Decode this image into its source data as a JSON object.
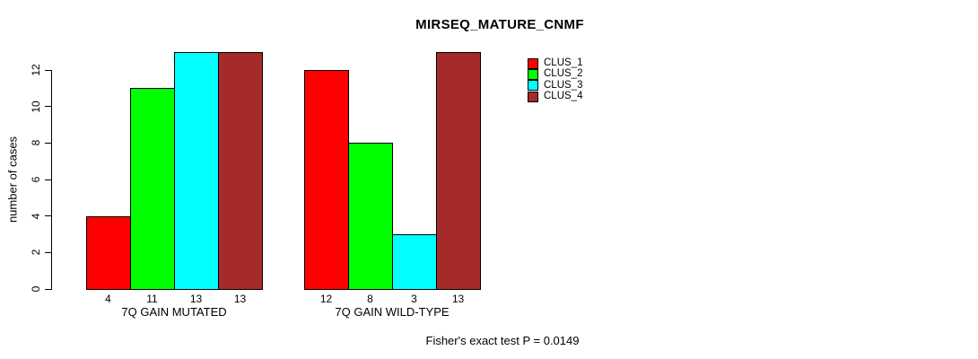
{
  "chart_data": {
    "type": "bar",
    "title": "MIRSEQ_MATURE_CNMF",
    "ylabel": "number of cases",
    "xlabel": "",
    "categories": [
      "7Q GAIN MUTATED",
      "7Q GAIN WILD-TYPE"
    ],
    "series": [
      {
        "name": "CLUS_1",
        "color": "#FF0000",
        "values": [
          4,
          12
        ]
      },
      {
        "name": "CLUS_2",
        "color": "#00FF00",
        "values": [
          11,
          8
        ]
      },
      {
        "name": "CLUS_3",
        "color": "#00FFFF",
        "values": [
          13,
          3
        ]
      },
      {
        "name": "CLUS_4",
        "color": "#A52A2A",
        "values": [
          13,
          13
        ]
      }
    ],
    "yticks": [
      0,
      2,
      4,
      6,
      8,
      10,
      12
    ],
    "ylim": [
      0,
      13
    ],
    "bar_value_labels": true,
    "grid": false,
    "legend_position": "top-right"
  },
  "footer": {
    "text": "Fisher's exact test P = 0.0149"
  }
}
